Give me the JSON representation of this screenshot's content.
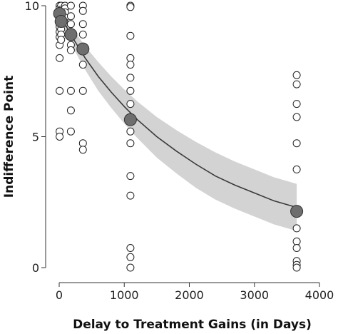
{
  "chart_data": {
    "type": "scatter",
    "xlabel": "Delay to Treatment Gains (in Days)",
    "ylabel": "Indifference Point",
    "xlim": [
      0,
      4000
    ],
    "ylim": [
      0,
      10
    ],
    "xticks": [
      0,
      1000,
      2000,
      3000,
      4000
    ],
    "yticks": [
      0,
      5,
      10
    ],
    "grid": false,
    "series": [
      {
        "kind": "observations",
        "points": [
          [
            7,
            10
          ],
          [
            7,
            9.9
          ],
          [
            7,
            9.8
          ],
          [
            7,
            9.6
          ],
          [
            7,
            9.4
          ],
          [
            7,
            9.2
          ],
          [
            7,
            9.0
          ],
          [
            7,
            8.8
          ],
          [
            7,
            8.5
          ],
          [
            7,
            8.0
          ],
          [
            7,
            6.75
          ],
          [
            7,
            5.2
          ],
          [
            7,
            5.0
          ],
          [
            30,
            10
          ],
          [
            30,
            9.85
          ],
          [
            30,
            9.7
          ],
          [
            30,
            9.5
          ],
          [
            30,
            9.3
          ],
          [
            30,
            9.1
          ],
          [
            30,
            8.9
          ],
          [
            30,
            8.7
          ],
          [
            90,
            10
          ],
          [
            90,
            9.9
          ],
          [
            90,
            9.75
          ],
          [
            90,
            9.55
          ],
          [
            90,
            9.35
          ],
          [
            180,
            10
          ],
          [
            180,
            9.6
          ],
          [
            180,
            9.3
          ],
          [
            180,
            8.5
          ],
          [
            180,
            8.3
          ],
          [
            180,
            6.75
          ],
          [
            180,
            6.0
          ],
          [
            180,
            5.2
          ],
          [
            365,
            10
          ],
          [
            365,
            9.8
          ],
          [
            365,
            9.3
          ],
          [
            365,
            8.9
          ],
          [
            365,
            8.4
          ],
          [
            365,
            7.75
          ],
          [
            365,
            6.75
          ],
          [
            365,
            4.75
          ],
          [
            365,
            4.5
          ],
          [
            1095,
            10
          ],
          [
            1095,
            9.95
          ],
          [
            1095,
            8.85
          ],
          [
            1095,
            8.0
          ],
          [
            1095,
            7.75
          ],
          [
            1095,
            7.25
          ],
          [
            1095,
            6.75
          ],
          [
            1095,
            6.25
          ],
          [
            1095,
            5.75
          ],
          [
            1095,
            5.2
          ],
          [
            1095,
            4.75
          ],
          [
            1095,
            3.5
          ],
          [
            1095,
            2.75
          ],
          [
            1095,
            0.75
          ],
          [
            1095,
            0.4
          ],
          [
            1095,
            0.0
          ],
          [
            3650,
            7.35
          ],
          [
            3650,
            7.0
          ],
          [
            3650,
            6.25
          ],
          [
            3650,
            5.75
          ],
          [
            3650,
            4.75
          ],
          [
            3650,
            3.75
          ],
          [
            3650,
            1.5
          ],
          [
            3650,
            1.0
          ],
          [
            3650,
            0.75
          ],
          [
            3650,
            0.25
          ],
          [
            3650,
            0.1
          ],
          [
            3650,
            0.0
          ]
        ]
      },
      {
        "kind": "means",
        "points": [
          [
            7,
            9.7
          ],
          [
            30,
            9.4
          ],
          [
            180,
            8.9
          ],
          [
            365,
            8.35
          ],
          [
            1095,
            5.65
          ],
          [
            3650,
            2.15
          ]
        ]
      },
      {
        "kind": "fit",
        "x": [
          0,
          100,
          200,
          300,
          400,
          600,
          800,
          1000,
          1200,
          1500,
          1800,
          2100,
          2400,
          2700,
          3000,
          3300,
          3650
        ],
        "y": [
          9.8,
          9.25,
          8.8,
          8.4,
          8.0,
          7.3,
          6.7,
          6.15,
          5.65,
          5.0,
          4.45,
          3.95,
          3.5,
          3.15,
          2.85,
          2.55,
          2.3
        ],
        "lower": [
          9.5,
          8.95,
          8.45,
          8.0,
          7.55,
          6.75,
          6.1,
          5.5,
          4.95,
          4.2,
          3.6,
          3.05,
          2.6,
          2.25,
          1.95,
          1.65,
          1.4
        ],
        "upper": [
          10.0,
          9.55,
          9.15,
          8.8,
          8.45,
          7.85,
          7.3,
          6.8,
          6.35,
          5.75,
          5.25,
          4.8,
          4.4,
          4.05,
          3.75,
          3.45,
          3.2
        ]
      }
    ],
    "colors": {
      "band": "#d3d3d3",
      "curve": "#3a3a3a",
      "mean": "#6e6e6e"
    }
  }
}
